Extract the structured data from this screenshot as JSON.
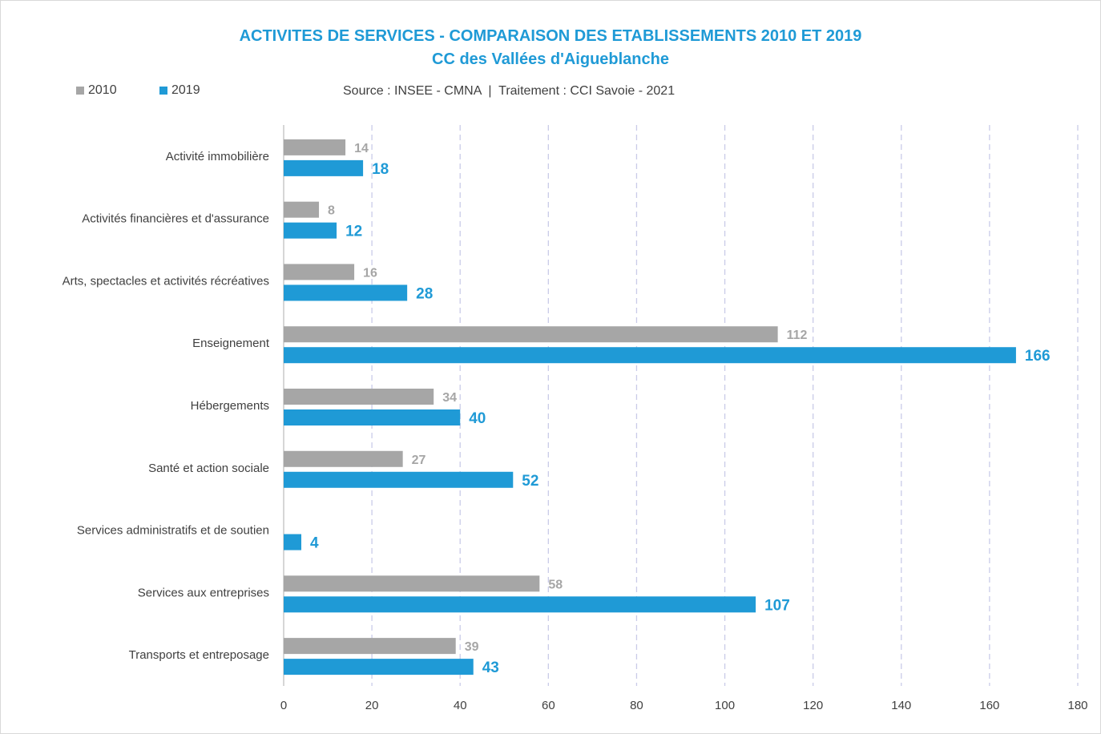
{
  "chart_data": {
    "type": "bar",
    "orientation": "horizontal",
    "title": "ACTIVITES DE SERVICES - COMPARAISON DES ETABLISSEMENTS 2010 ET 2019",
    "subtitle": "CC des Vallées d'Aigueblanche",
    "source": "Source : INSEE - CMNA  |  Traitement : CCI Savoie - 2021",
    "categories": [
      "Activité immobilière",
      "Activités financières et d'assurance",
      "Arts, spectacles et activités récréatives",
      "Enseignement",
      "Hébergements",
      "Santé et action sociale",
      "Services administratifs et de soutien",
      "Services aux entreprises",
      "Transports et entreposage"
    ],
    "series": [
      {
        "name": "2010",
        "color": "#a6a6a6",
        "values": [
          14,
          8,
          16,
          112,
          34,
          27,
          null,
          58,
          39
        ]
      },
      {
        "name": "2019",
        "color": "#1f9ad6",
        "values": [
          18,
          12,
          28,
          166,
          40,
          52,
          4,
          107,
          43
        ]
      }
    ],
    "xlim": [
      0,
      180
    ],
    "xticks": [
      0,
      20,
      40,
      60,
      80,
      100,
      120,
      140,
      160,
      180
    ],
    "grid": true,
    "legend_position": "top-left"
  }
}
